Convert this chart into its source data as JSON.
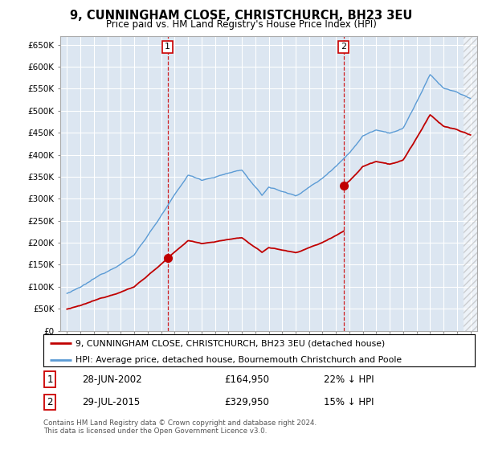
{
  "title": "9, CUNNINGHAM CLOSE, CHRISTCHURCH, BH23 3EU",
  "subtitle": "Price paid vs. HM Land Registry's House Price Index (HPI)",
  "ylim": [
    0,
    670000
  ],
  "xlim_year": [
    1994.5,
    2025.5
  ],
  "hpi_color": "#5b9bd5",
  "price_color": "#c00000",
  "background_color": "#dce6f1",
  "sale1_year": 2002.49,
  "sale1_price": 164950,
  "sale2_year": 2015.57,
  "sale2_price": 329950,
  "legend_price_label": "9, CUNNINGHAM CLOSE, CHRISTCHURCH, BH23 3EU (detached house)",
  "legend_hpi_label": "HPI: Average price, detached house, Bournemouth Christchurch and Poole",
  "footer": "Contains HM Land Registry data © Crown copyright and database right 2024.\nThis data is licensed under the Open Government Licence v3.0.",
  "row1_date": "28-JUN-2002",
  "row1_price": "£164,950",
  "row1_hpi": "22% ↓ HPI",
  "row2_date": "29-JUL-2015",
  "row2_price": "£329,950",
  "row2_hpi": "15% ↓ HPI"
}
